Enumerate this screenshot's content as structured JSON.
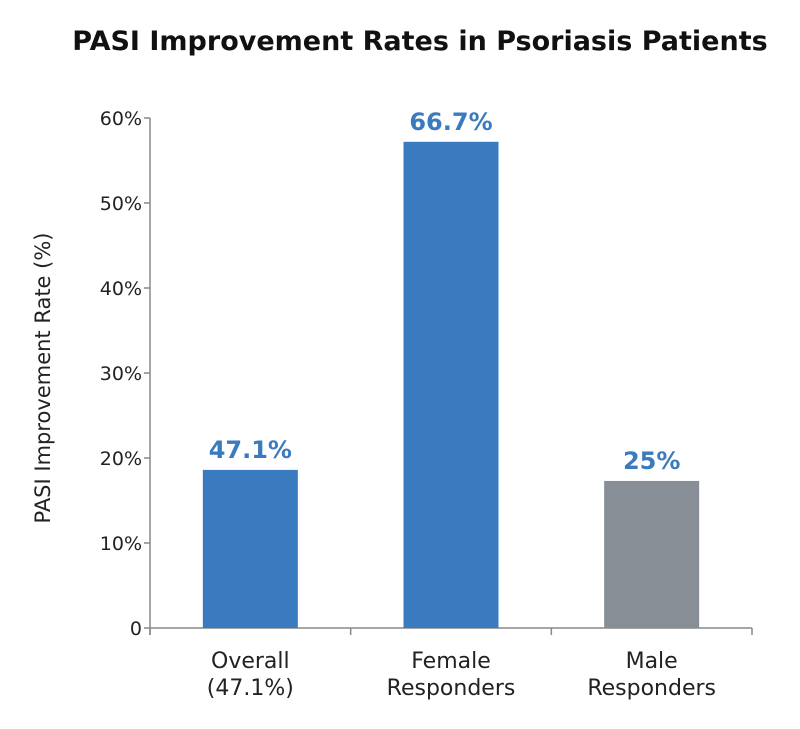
{
  "chart_data": {
    "type": "bar",
    "title": "PASI Improvement Rates in Psoriasis Patients",
    "ylabel": "PASI Improvement Rate (%)",
    "xlabel": "",
    "ylim": [
      0,
      60
    ],
    "yticks": [
      0,
      10,
      20,
      30,
      40,
      50,
      60
    ],
    "ytick_labels": [
      "0",
      "10%",
      "20%",
      "30%",
      "40%",
      "50%",
      "60%"
    ],
    "categories": [
      [
        "Overall",
        "(47.1%)"
      ],
      [
        "Female",
        "Responders"
      ],
      [
        "Male",
        "Responders"
      ]
    ],
    "values": [
      18.6,
      57.2,
      17.3
    ],
    "data_labels": [
      "47.1%",
      "66.7%",
      "25%"
    ],
    "bar_colors": [
      "#3a7bbf",
      "#3a7bbf",
      "#878e96"
    ],
    "label_colors": [
      "#3a7bbf",
      "#3a7bbf",
      "#3a7bbf"
    ],
    "grid": false,
    "legend": "none"
  }
}
